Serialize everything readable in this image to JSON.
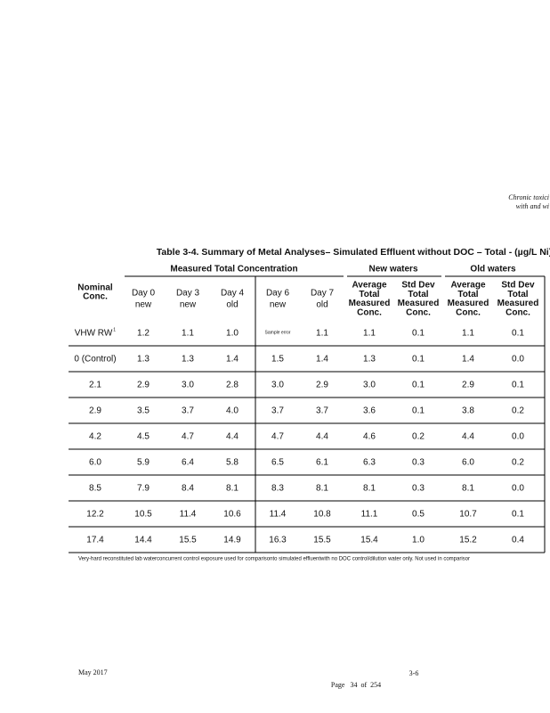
{
  "header": {
    "lines": [
      "Chronic toxici",
      "with and wi"
    ]
  },
  "table": {
    "title": "Table 3-4.  Summary of Metal Analyses– Simulated Effluent without DOC – Total  - (µg/L Ni)",
    "groups": [
      "Measured Total Concentration",
      "New waters",
      "Old waters"
    ],
    "columns": [
      [
        "Nominal",
        "Conc."
      ],
      [
        "Day 0",
        "new"
      ],
      [
        "Day 3",
        "new"
      ],
      [
        "Day 4",
        "old"
      ],
      [
        "Day 6",
        "new"
      ],
      [
        "Day 7",
        "old"
      ],
      [
        "Average",
        "Total",
        "Measured",
        "Conc."
      ],
      [
        "Std Dev",
        "Total",
        "Measured",
        "Conc."
      ],
      [
        "Average",
        "Total",
        "Measured",
        "Conc."
      ],
      [
        "Std Dev",
        "Total",
        "Measured",
        "Conc."
      ]
    ],
    "rows": [
      {
        "label": "VHW RW",
        "marker": "1",
        "cells": [
          "1.2",
          "1.1",
          "1.0",
          "Sample error",
          "1.1",
          "1.1",
          "0.1",
          "1.1",
          "0.1"
        ]
      },
      {
        "label": "0 (Control)",
        "cells": [
          "1.3",
          "1.3",
          "1.4",
          "1.5",
          "1.4",
          "1.3",
          "0.1",
          "1.4",
          "0.0"
        ]
      },
      {
        "label": "2.1",
        "cells": [
          "2.9",
          "3.0",
          "2.8",
          "3.0",
          "2.9",
          "3.0",
          "0.1",
          "2.9",
          "0.1"
        ]
      },
      {
        "label": "2.9",
        "cells": [
          "3.5",
          "3.7",
          "4.0",
          "3.7",
          "3.7",
          "3.6",
          "0.1",
          "3.8",
          "0.2"
        ]
      },
      {
        "label": "4.2",
        "cells": [
          "4.5",
          "4.7",
          "4.4",
          "4.7",
          "4.4",
          "4.6",
          "0.2",
          "4.4",
          "0.0"
        ]
      },
      {
        "label": "6.0",
        "cells": [
          "5.9",
          "6.4",
          "5.8",
          "6.5",
          "6.1",
          "6.3",
          "0.3",
          "6.0",
          "0.2"
        ]
      },
      {
        "label": "8.5",
        "cells": [
          "7.9",
          "8.4",
          "8.1",
          "8.3",
          "8.1",
          "8.1",
          "0.3",
          "8.1",
          "0.0"
        ]
      },
      {
        "label": "12.2",
        "cells": [
          "10.5",
          "11.4",
          "10.6",
          "11.4",
          "10.8",
          "11.1",
          "0.5",
          "10.7",
          "0.1"
        ]
      },
      {
        "label": "17.4",
        "cells": [
          "14.4",
          "15.5",
          "14.9",
          "16.3",
          "15.5",
          "15.4",
          "1.0",
          "15.2",
          "0.4"
        ]
      }
    ],
    "footnote": "Very-hard reconstituted lab waterconcurrent control exposure used for comparisonto simulated effluentwith no DOC control/dilution water only. Not used in comparisor"
  },
  "footer": {
    "date": "May 2017",
    "section": "3-6",
    "page": "Page   34  of  254"
  }
}
